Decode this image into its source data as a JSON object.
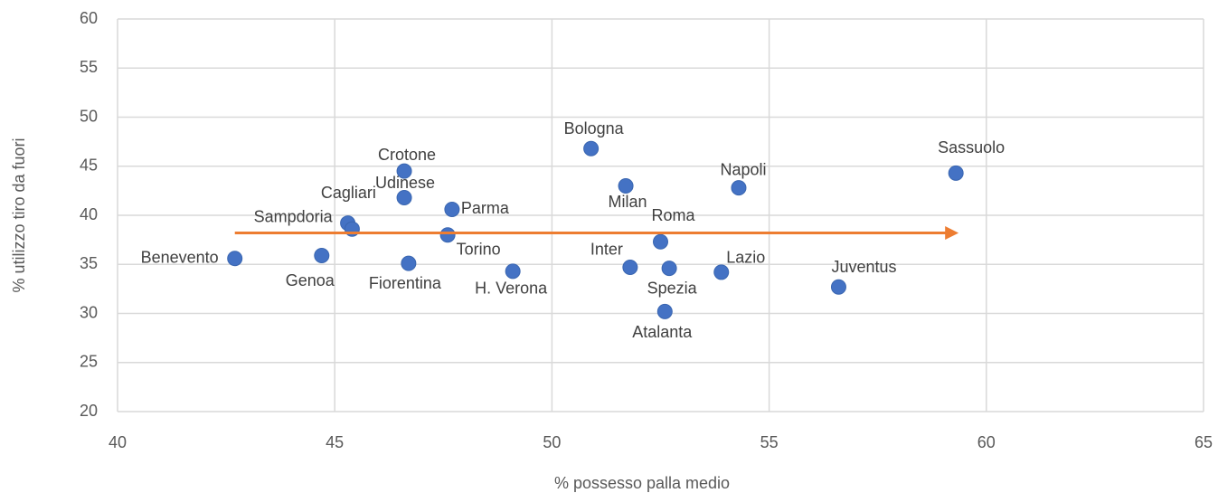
{
  "chart_data": {
    "type": "scatter",
    "xlabel": "% possesso palla medio",
    "ylabel": "% utilizzo tiro da fuori",
    "labels": [
      "Benevento",
      "Genoa",
      "Sampdoria",
      "Cagliari",
      "Crotone",
      "Udinese",
      "Fiorentina",
      "Parma",
      "Torino",
      "H. Verona",
      "Bologna",
      "Milan",
      "Inter",
      "Roma",
      "Spezia",
      "Atalanta",
      "Lazio",
      "Napoli",
      "Juventus",
      "Sassuolo"
    ],
    "x": [
      42.7,
      44.7,
      45.3,
      45.4,
      46.6,
      46.6,
      46.7,
      47.7,
      47.6,
      49.1,
      50.9,
      51.7,
      51.8,
      52.5,
      52.7,
      52.6,
      53.9,
      54.3,
      56.6,
      59.3
    ],
    "values": [
      35.6,
      35.9,
      39.2,
      38.6,
      44.5,
      41.8,
      35.1,
      40.6,
      38.0,
      34.3,
      46.8,
      43.0,
      34.7,
      37.3,
      34.6,
      30.2,
      34.2,
      42.8,
      32.7,
      44.3
    ],
    "color": "#4472c4",
    "trendline": {
      "x": [
        42.7,
        59.3
      ],
      "y": [
        38.2,
        38.2
      ],
      "color": "#ed7d31"
    },
    "xlim": [
      40,
      65
    ],
    "xticks": [
      40,
      45,
      50,
      55,
      60,
      65
    ],
    "ylim": [
      20,
      60
    ],
    "yticks": [
      20,
      25,
      30,
      35,
      40,
      45,
      50,
      55,
      60
    ],
    "grid": true
  }
}
